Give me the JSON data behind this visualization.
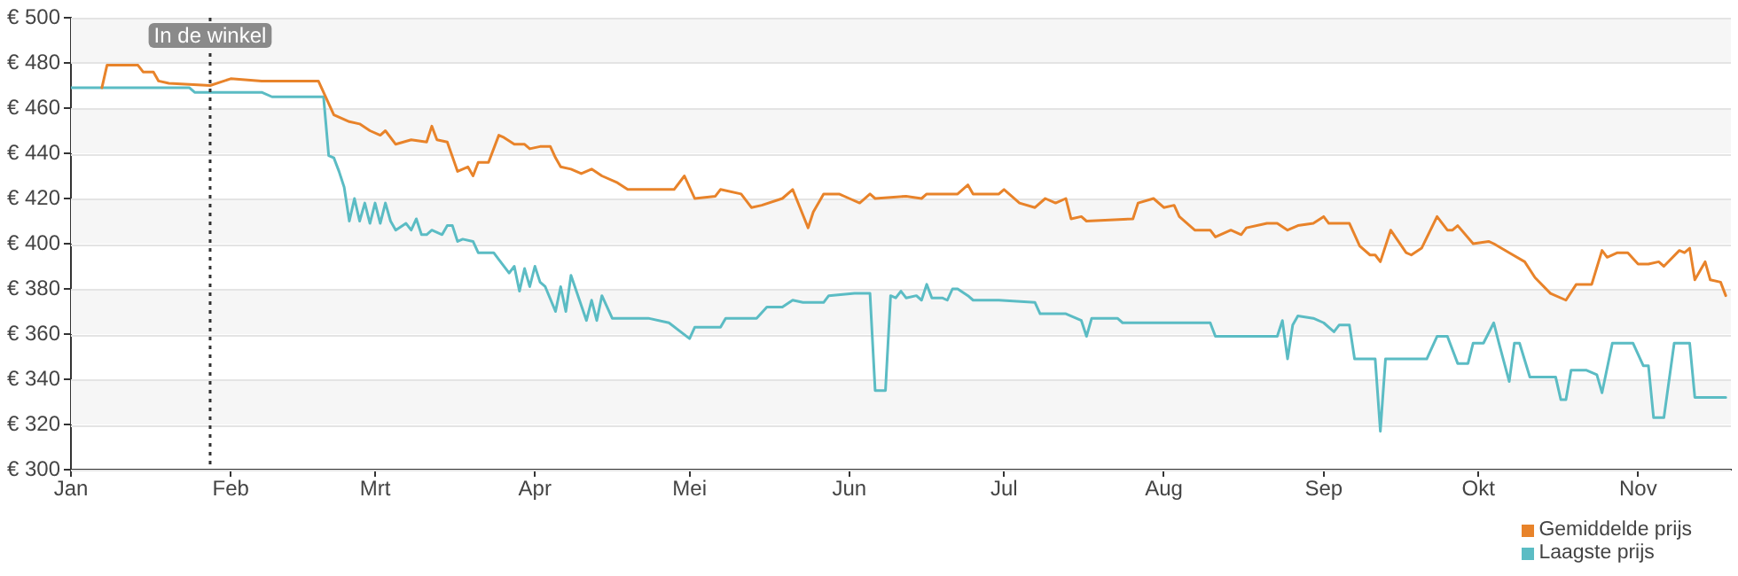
{
  "chart_data": {
    "type": "line",
    "xlim": [
      "--01-01",
      "--11-19"
    ],
    "xticks": [
      {
        "value": "--01-01",
        "label": "Jan"
      },
      {
        "value": "--02-01",
        "label": "Feb"
      },
      {
        "value": "--03-01",
        "label": "Mrt"
      },
      {
        "value": "--04-01",
        "label": "Apr"
      },
      {
        "value": "--05-01",
        "label": "Mei"
      },
      {
        "value": "--06-01",
        "label": "Jun"
      },
      {
        "value": "--07-01",
        "label": "Jul"
      },
      {
        "value": "--08-01",
        "label": "Aug"
      },
      {
        "value": "--09-01",
        "label": "Sep"
      },
      {
        "value": "--10-01",
        "label": "Okt"
      },
      {
        "value": "--11-01",
        "label": "Nov"
      }
    ],
    "ylim": [
      300,
      500
    ],
    "yticks": [
      {
        "value": 300,
        "label": "€ 300"
      },
      {
        "value": 320,
        "label": "€ 320"
      },
      {
        "value": 340,
        "label": "€ 340"
      },
      {
        "value": 360,
        "label": "€ 360"
      },
      {
        "value": 380,
        "label": "€ 380"
      },
      {
        "value": 400,
        "label": "€ 400"
      },
      {
        "value": 420,
        "label": "€ 420"
      },
      {
        "value": 440,
        "label": "€ 440"
      },
      {
        "value": 460,
        "label": "€ 460"
      },
      {
        "value": 480,
        "label": "€ 480"
      },
      {
        "value": 500,
        "label": "€ 500"
      }
    ],
    "grid": "y",
    "legend": "bottom right",
    "marker": "none",
    "line_style": "solid",
    "ref_lines": [
      {
        "axis": "x",
        "value": "--01-28",
        "label": "In de winkel",
        "color": "#333333",
        "line_style": "dotted"
      }
    ],
    "series": [
      {
        "name": "Gemiddelde prijs",
        "color": "#e8832a",
        "x": [
          "--01-07",
          "--01-08",
          "--01-14",
          "--01-15",
          "--01-17",
          "--01-18",
          "--01-20",
          "--01-28",
          "--02-01",
          "--02-07",
          "--02-18",
          "--02-21",
          "--02-24",
          "--02-26",
          "--02-28",
          "--03-02",
          "--03-03",
          "--03-05",
          "--03-08",
          "--03-11",
          "--03-12",
          "--03-13",
          "--03-15",
          "--03-17",
          "--03-19",
          "--03-20",
          "--03-21",
          "--03-23",
          "--03-25",
          "--03-26",
          "--03-28",
          "--03-30",
          "--03-31",
          "--04-02",
          "--04-04",
          "--04-05",
          "--04-06",
          "--04-08",
          "--04-10",
          "--04-12",
          "--04-14",
          "--04-17",
          "--04-19",
          "--04-23",
          "--04-28",
          "--04-30",
          "--05-02",
          "--05-06",
          "--05-07",
          "--05-11",
          "--05-13",
          "--05-15",
          "--05-19",
          "--05-21",
          "--05-24",
          "--05-25",
          "--05-27",
          "--05-30",
          "--06-01",
          "--06-03",
          "--06-05",
          "--06-06",
          "--06-12",
          "--06-15",
          "--06-16",
          "--06-22",
          "--06-24",
          "--06-25",
          "--06-30",
          "--07-01",
          "--07-04",
          "--07-07",
          "--07-09",
          "--07-11",
          "--07-13",
          "--07-14",
          "--07-16",
          "--07-17",
          "--07-26",
          "--07-27",
          "--07-30",
          "--08-01",
          "--08-03",
          "--08-04",
          "--08-07",
          "--08-10",
          "--08-11",
          "--08-14",
          "--08-16",
          "--08-17",
          "--08-21",
          "--08-23",
          "--08-25",
          "--08-27",
          "--08-30",
          "--09-01",
          "--09-02",
          "--09-06",
          "--09-08",
          "--09-10",
          "--09-11",
          "--09-12",
          "--09-14",
          "--09-17",
          "--09-18",
          "--09-20",
          "--09-23",
          "--09-25",
          "--09-26",
          "--09-27",
          "--09-30",
          "--10-03",
          "--10-04",
          "--10-07",
          "--10-10",
          "--10-12",
          "--10-15",
          "--10-18",
          "--10-20",
          "--10-23",
          "--10-25",
          "--10-26",
          "--10-28",
          "--10-30",
          "--11-01",
          "--11-03",
          "--11-05",
          "--11-06",
          "--11-09",
          "--11-10",
          "--11-11",
          "--11-12",
          "--11-14",
          "--11-15",
          "--11-17",
          "--11-18"
        ],
        "values": [
          469,
          479,
          479,
          476,
          476,
          472,
          471,
          470,
          473,
          472,
          472,
          457,
          454,
          453,
          450,
          448,
          450,
          444,
          446,
          445,
          452,
          446,
          445,
          432,
          434,
          430,
          436,
          436,
          448,
          447,
          444,
          444,
          442,
          443,
          443,
          438,
          434,
          433,
          431,
          433,
          430,
          427,
          424,
          424,
          424,
          430,
          420,
          421,
          424,
          422,
          416,
          417,
          420,
          424,
          407,
          414,
          422,
          422,
          420,
          418,
          422,
          420,
          421,
          420,
          422,
          422,
          426,
          422,
          422,
          424,
          418,
          416,
          420,
          418,
          420,
          411,
          412,
          410,
          411,
          418,
          420,
          416,
          417,
          412,
          406,
          406,
          403,
          406,
          404,
          407,
          409,
          409,
          406,
          408,
          409,
          412,
          409,
          409,
          399,
          395,
          395,
          392,
          406,
          396,
          395,
          398,
          412,
          406,
          406,
          408,
          400,
          401,
          400,
          396,
          392,
          385,
          378,
          375,
          382,
          382,
          397,
          394,
          396,
          396,
          391,
          391,
          392,
          390,
          397,
          396,
          398,
          384,
          392,
          384,
          383,
          377
        ]
      },
      {
        "name": "Laagste prijs",
        "color": "#5bbcc4",
        "x": [
          "--01-01",
          "--01-24",
          "--01-25",
          "--02-07",
          "--02-09",
          "--02-19",
          "--02-20",
          "--02-21",
          "--02-22",
          "--02-23",
          "--02-24",
          "--02-25",
          "--02-26",
          "--02-27",
          "--02-28",
          "--03-01",
          "--03-02",
          "--03-03",
          "--03-04",
          "--03-05",
          "--03-07",
          "--03-08",
          "--03-09",
          "--03-10",
          "--03-11",
          "--03-12",
          "--03-14",
          "--03-15",
          "--03-16",
          "--03-17",
          "--03-18",
          "--03-20",
          "--03-21",
          "--03-24",
          "--03-25",
          "--03-27",
          "--03-28",
          "--03-29",
          "--03-30",
          "--03-31",
          "--04-01",
          "--04-02",
          "--04-03",
          "--04-05",
          "--04-06",
          "--04-07",
          "--04-08",
          "--04-11",
          "--04-12",
          "--04-13",
          "--04-14",
          "--04-16",
          "--04-23",
          "--04-27",
          "--05-01",
          "--05-02",
          "--05-07",
          "--05-08",
          "--05-14",
          "--05-16",
          "--05-19",
          "--05-21",
          "--05-23",
          "--05-27",
          "--05-28",
          "--06-02",
          "--06-05",
          "--06-06",
          "--06-08",
          "--06-09",
          "--06-10",
          "--06-11",
          "--06-12",
          "--06-14",
          "--06-15",
          "--06-16",
          "--06-17",
          "--06-19",
          "--06-20",
          "--06-21",
          "--06-22",
          "--06-24",
          "--06-25",
          "--06-30",
          "--07-07",
          "--07-08",
          "--07-13",
          "--07-16",
          "--07-17",
          "--07-18",
          "--07-23",
          "--07-24",
          "--08-10",
          "--08-11",
          "--08-23",
          "--08-24",
          "--08-25",
          "--08-26",
          "--08-27",
          "--08-30",
          "--09-01",
          "--09-03",
          "--09-04",
          "--09-06",
          "--09-07",
          "--09-11",
          "--09-12",
          "--09-13",
          "--09-21",
          "--09-23",
          "--09-25",
          "--09-27",
          "--09-29",
          "--09-30",
          "--10-02",
          "--10-04",
          "--10-05",
          "--10-07",
          "--10-08",
          "--10-09",
          "--10-11",
          "--10-16",
          "--10-17",
          "--10-18",
          "--10-19",
          "--10-22",
          "--10-24",
          "--10-25",
          "--10-27",
          "--10-31",
          "--11-02",
          "--11-03",
          "--11-04",
          "--11-06",
          "--11-08",
          "--11-11",
          "--11-12",
          "--11-18"
        ],
        "values": [
          469,
          469,
          467,
          467,
          465,
          465,
          439,
          438,
          432,
          425,
          410,
          420,
          410,
          418,
          409,
          418,
          409,
          418,
          410,
          406,
          409,
          406,
          411,
          404,
          404,
          406,
          404,
          408,
          408,
          401,
          402,
          401,
          396,
          396,
          393,
          387,
          390,
          379,
          389,
          381,
          390,
          383,
          381,
          370,
          381,
          370,
          386,
          366,
          375,
          366,
          377,
          367,
          367,
          365,
          358,
          363,
          363,
          367,
          367,
          372,
          372,
          375,
          374,
          374,
          377,
          378,
          378,
          335,
          335,
          377,
          376,
          379,
          376,
          377,
          375,
          382,
          376,
          376,
          375,
          380,
          380,
          377,
          375,
          375,
          374,
          369,
          369,
          366,
          359,
          367,
          367,
          365,
          365,
          359,
          359,
          366,
          349,
          364,
          368,
          367,
          365,
          361,
          364,
          364,
          349,
          349,
          317,
          349,
          349,
          359,
          359,
          347,
          347,
          356,
          356,
          365,
          356,
          339,
          356,
          356,
          341,
          341,
          331,
          331,
          344,
          344,
          342,
          334,
          356,
          356,
          346,
          346,
          323,
          323,
          356,
          356,
          332,
          332
        ]
      }
    ]
  }
}
